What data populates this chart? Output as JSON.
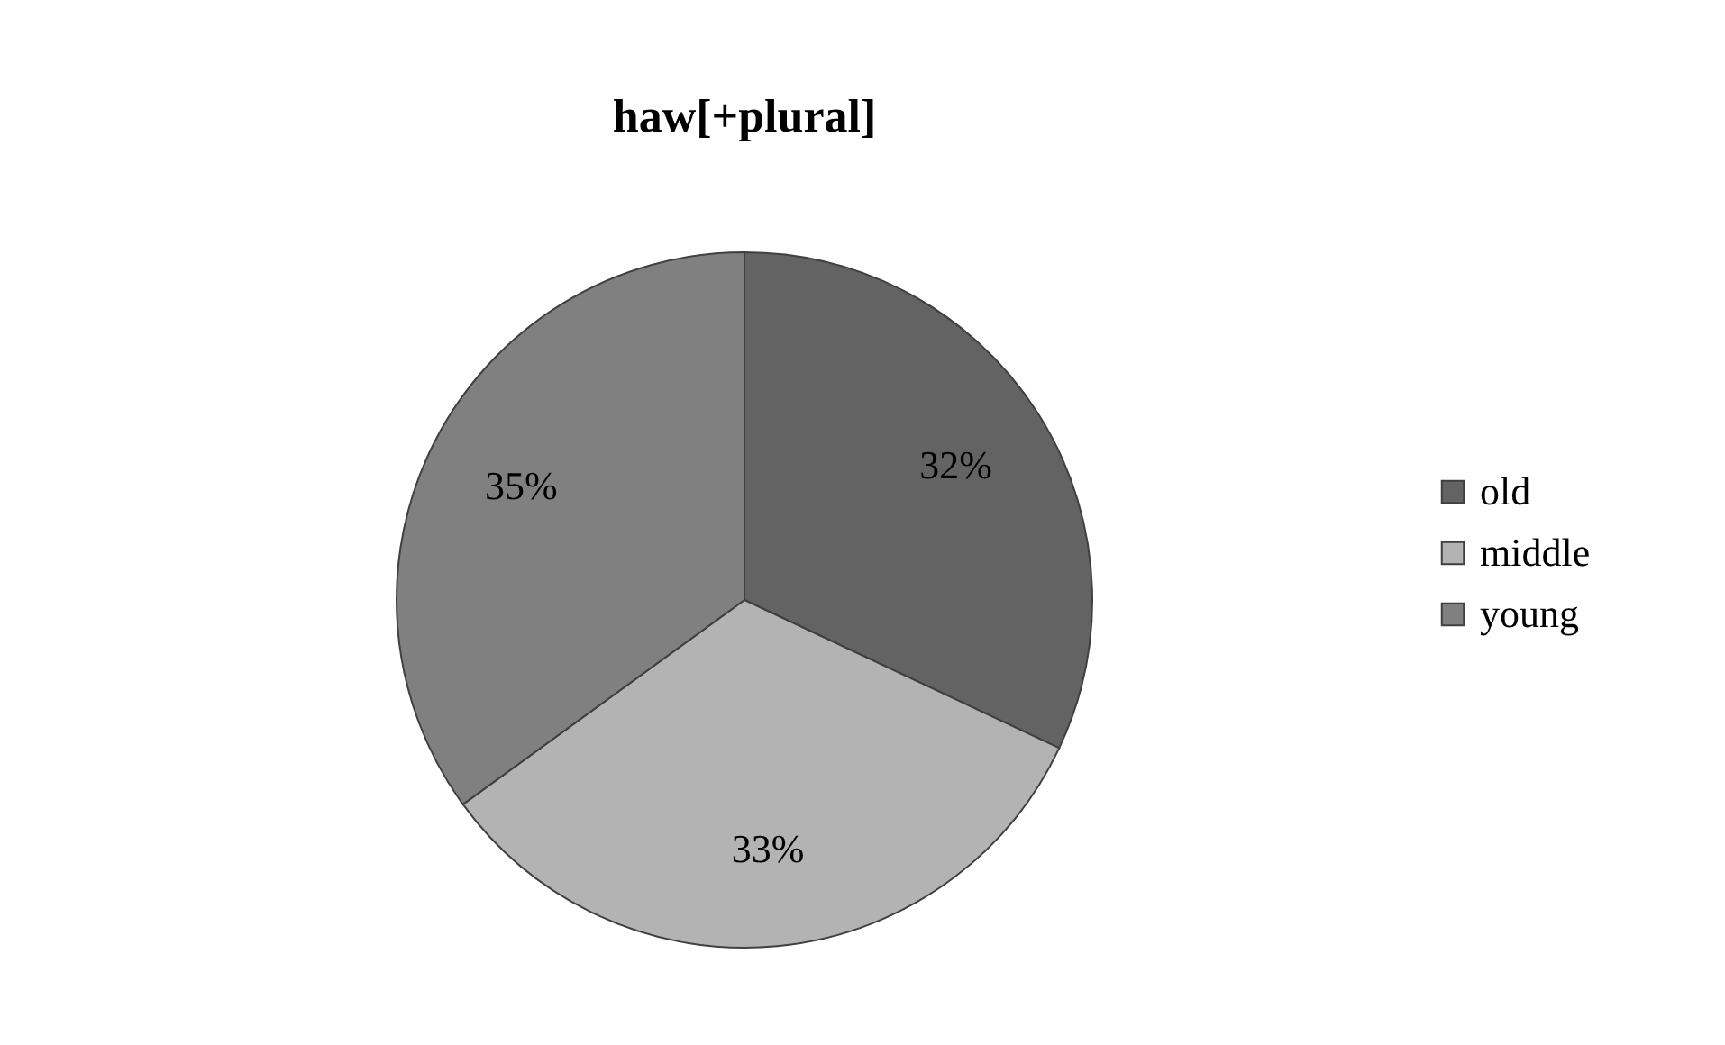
{
  "chart_data": {
    "type": "pie",
    "title": "haw[+plural]",
    "categories": [
      "old",
      "middle",
      "young"
    ],
    "values": [
      32,
      33,
      35
    ],
    "colors": [
      "#636363",
      "#b3b3b3",
      "#808080"
    ],
    "value_labels": [
      "32%",
      "33%",
      "35%"
    ],
    "legend": "right"
  }
}
